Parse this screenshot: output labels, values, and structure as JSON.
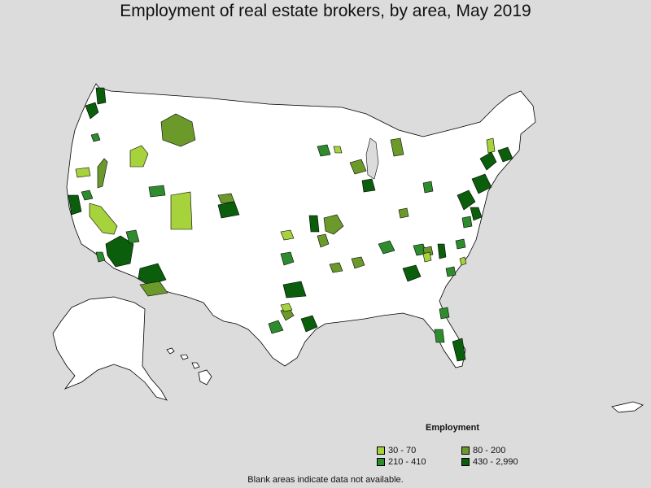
{
  "title": "Employment of real estate brokers, by area, May 2019",
  "legend": {
    "title": "Employment",
    "items": [
      {
        "label": "30 - 70",
        "color": "#a6d33c"
      },
      {
        "label": "80 - 200",
        "color": "#6b9a2a"
      },
      {
        "label": "210 - 410",
        "color": "#2e8b2e"
      },
      {
        "label": "430 - 2,990",
        "color": "#0b5e0b"
      }
    ]
  },
  "footnote": "Blank areas indicate data not available.",
  "colors": {
    "background": "#dcdcdc",
    "land": "#ffffff",
    "border": "#000000"
  }
}
